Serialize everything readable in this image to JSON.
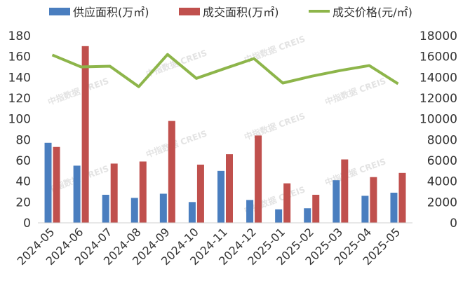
{
  "chart_data": {
    "type": "bar",
    "categories": [
      "2024-05",
      "2024-06",
      "2024-07",
      "2024-08",
      "2024-09",
      "2024-10",
      "2024-11",
      "2024-12",
      "2025-01",
      "2025-02",
      "2025-03",
      "2025-04",
      "2025-05"
    ],
    "series": [
      {
        "name": "供应面积(万㎡)",
        "type": "bar",
        "axis": "left",
        "color": "#4a7ebf",
        "values": [
          77,
          55,
          27,
          24,
          28,
          20,
          50,
          22,
          13,
          14,
          41,
          26,
          29
        ]
      },
      {
        "name": "成交面积(万㎡)",
        "type": "bar",
        "axis": "left",
        "color": "#c0504d",
        "values": [
          73,
          170,
          57,
          59,
          98,
          56,
          66,
          84,
          38,
          27,
          61,
          44,
          48
        ]
      },
      {
        "name": "成交价格(元/㎡)",
        "type": "line",
        "axis": "right",
        "color": "#8db54a",
        "values": [
          16150,
          15000,
          15070,
          13100,
          16200,
          13900,
          14860,
          15800,
          13450,
          14100,
          14660,
          15130,
          13380
        ]
      }
    ],
    "left_axis": {
      "range": [
        0,
        180
      ],
      "ticks": [
        "0",
        "20",
        "40",
        "60",
        "80",
        "100",
        "120",
        "140",
        "160",
        "180"
      ]
    },
    "right_axis": {
      "range": [
        0,
        18000
      ],
      "ticks": [
        "0",
        "2000",
        "4000",
        "6000",
        "8000",
        "10000",
        "12000",
        "14000",
        "16000",
        "18000"
      ]
    },
    "legend_placement": "top",
    "grid": false,
    "watermark": "中指数据 CREIS"
  }
}
